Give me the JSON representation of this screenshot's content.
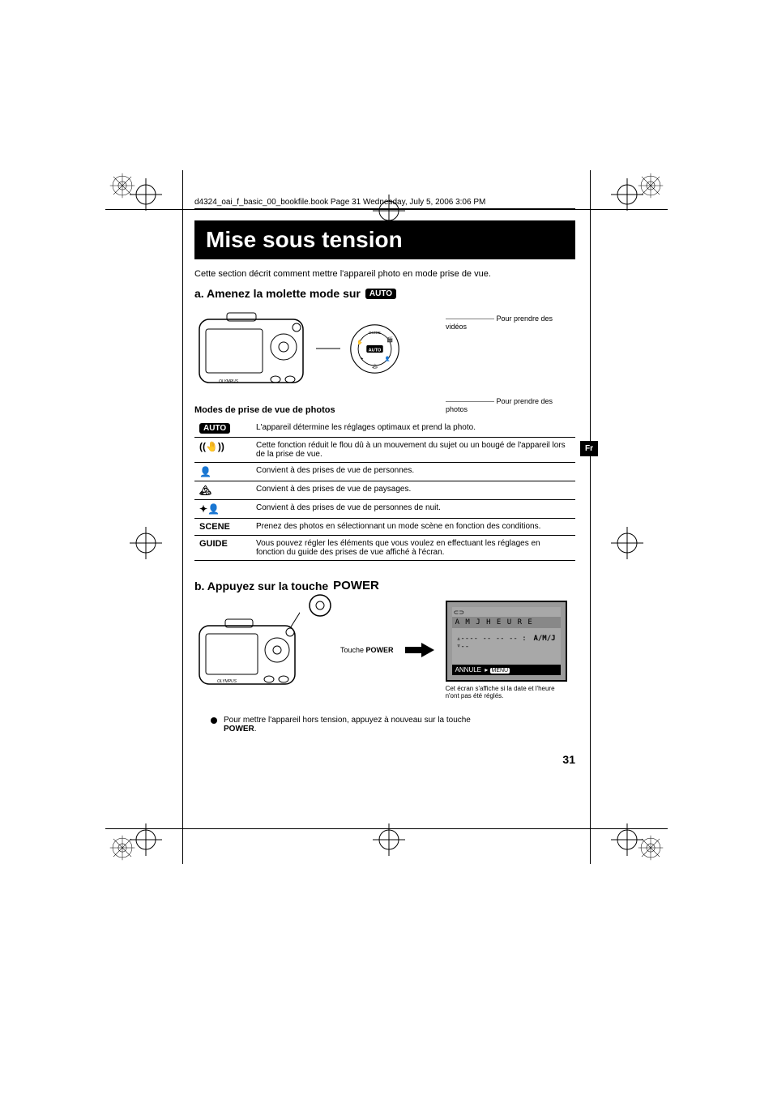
{
  "header": {
    "bookfile_line": "d4324_oai_f_basic_00_bookfile.book  Page 31  Wednesday, July 5, 2006  3:06 PM"
  },
  "title": "Mise sous tension",
  "intro": "Cette section décrit comment mettre l'appareil photo en mode prise de vue.",
  "section_a": {
    "heading_prefix": "a.  Amenez la molette mode sur",
    "auto_badge": "AUTO",
    "label_videos": "Pour prendre des vidéos",
    "label_photos": "Pour prendre des photos",
    "subheading": "Modes de prise de vue de photos",
    "modes": [
      {
        "icon": "AUTO",
        "icon_style": "badge",
        "desc": "L'appareil détermine les réglages optimaux et prend la photo."
      },
      {
        "icon": "((🤚))",
        "icon_style": "glyph",
        "desc": "Cette fonction réduit le flou dû à un mouvement du sujet ou un bougé de l'appareil lors de la prise de vue."
      },
      {
        "icon": "👤",
        "icon_style": "glyph",
        "desc": "Convient à des prises de vue de personnes."
      },
      {
        "icon": "🏔",
        "icon_style": "glyph",
        "desc": "Convient à des prises de vue de paysages."
      },
      {
        "icon": "✦👤",
        "icon_style": "glyph",
        "desc": "Convient à des prises de vue de personnes de nuit."
      },
      {
        "icon": "SCENE",
        "icon_style": "boldtext",
        "desc": "Prenez des photos en sélectionnant un mode scène en fonction des conditions."
      },
      {
        "icon": "GUIDE",
        "icon_style": "boldtext",
        "desc": "Vous pouvez régler les éléments que vous voulez en effectuant les réglages en fonction du guide des prises de vue affiché à l'écran."
      }
    ]
  },
  "section_b": {
    "heading_prefix": "b.  Appuyez sur la touche",
    "power_word": "POWER",
    "touche_label": "Touche",
    "touche_power": "POWER",
    "screen": {
      "top_row": "A   M   J  H E U R E",
      "dashes": "----  -- --   -- : --",
      "format": "A/M/J",
      "bottom": "ANNULE",
      "bottom_menu": "MENU"
    },
    "screen_caption": "Cet écran s'affiche si la date et l'heure n'ont pas été réglés.",
    "bullet_note": "Pour mettre l'appareil hors tension, appuyez à nouveau sur la touche",
    "bullet_power": "POWER",
    "bullet_period": "."
  },
  "lang_tab": "Fr",
  "page_number": "31",
  "colors": {
    "black": "#000000",
    "white": "#ffffff",
    "screen_bg": "#9a9a9a",
    "screen_inner": "#a8a8a8",
    "screen_bar": "#888888"
  }
}
